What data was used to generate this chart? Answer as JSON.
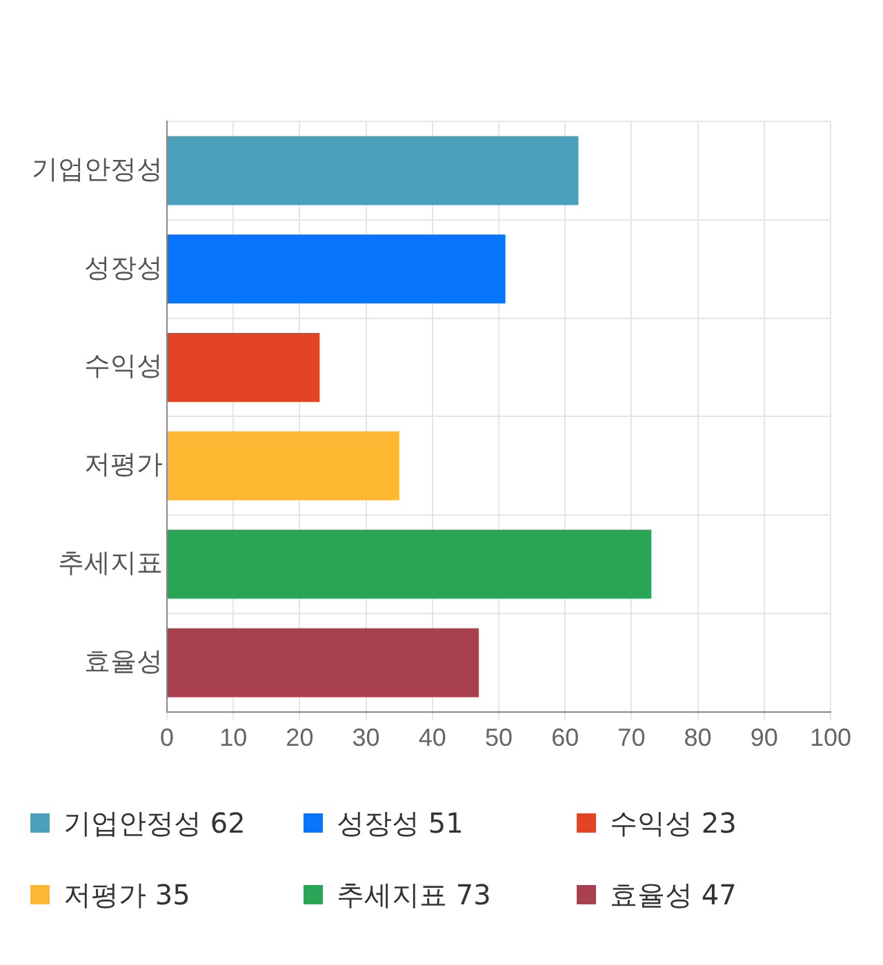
{
  "chart_data": {
    "type": "bar",
    "orientation": "horizontal",
    "categories": [
      "기업안정성",
      "성장성",
      "수익성",
      "저평가",
      "추세지표",
      "효율성"
    ],
    "values": [
      62,
      51,
      23,
      35,
      73,
      47
    ],
    "value_labels": [
      "62",
      "51",
      "23",
      "35",
      "73",
      "47"
    ],
    "colors": [
      "#4aa0bb",
      "#0776fd",
      "#e24424",
      "#feb731",
      "#28a655",
      "#a8404f"
    ],
    "xlim": [
      0,
      100
    ],
    "xticks": [
      0,
      10,
      20,
      30,
      40,
      50,
      60,
      70,
      80,
      90,
      100
    ],
    "grid": true
  }
}
